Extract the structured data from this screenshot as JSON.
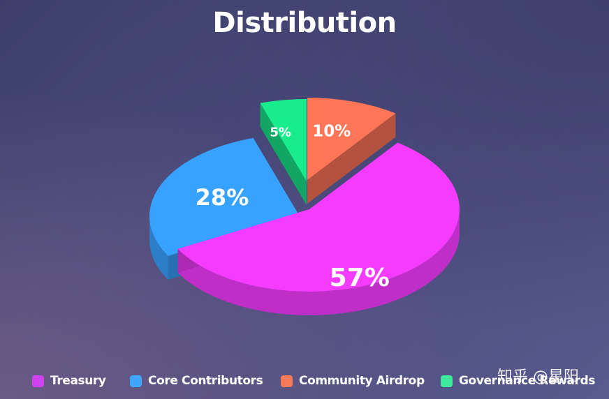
{
  "chart_data": {
    "type": "pie",
    "title": "Distribution",
    "categories": [
      "Treasury",
      "Core Contributors",
      "Community Airdrop",
      "Governance Rewards"
    ],
    "values": [
      57,
      28,
      10,
      5
    ],
    "labels": [
      "57%",
      "28%",
      "10%",
      "5%"
    ],
    "colors": [
      "#f53bff",
      "#37a2ff",
      "#ff7558",
      "#19ec8d"
    ],
    "legend_position": "bottom",
    "three_d": true
  },
  "legend": {
    "items": [
      {
        "label": "Treasury",
        "color": "#cf42f0"
      },
      {
        "label": "Core Contributors",
        "color": "#3ea6ff"
      },
      {
        "label": "Community Airdrop",
        "color": "#f77a5b"
      },
      {
        "label": "Governance Rewards",
        "color": "#3fe99b"
      }
    ]
  },
  "watermark": "知乎 @星阳"
}
